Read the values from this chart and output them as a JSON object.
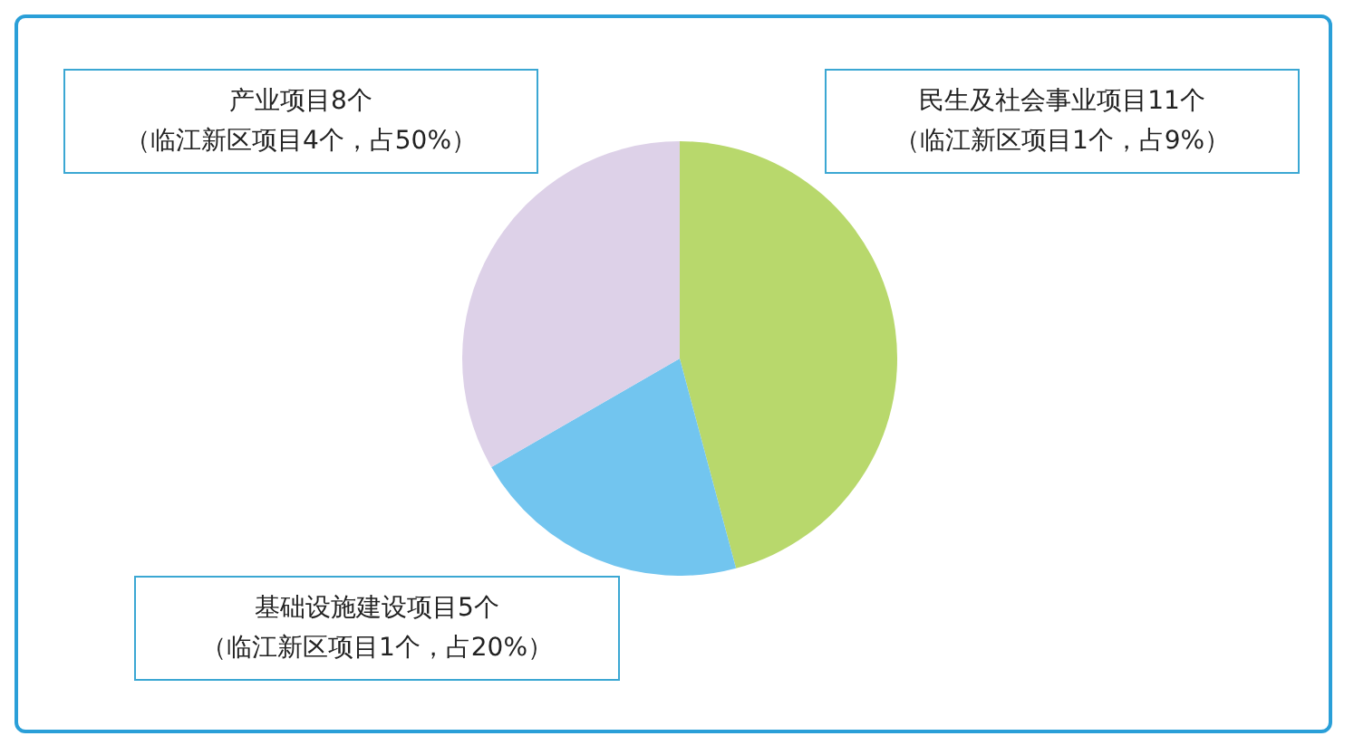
{
  "chart_data": {
    "type": "pie",
    "categories": [
      "民生及社会事业项目11个",
      "基础设施建设项目5个",
      "产业项目8个"
    ],
    "values": [
      11,
      5,
      8
    ],
    "colors": [
      "#b8d86c",
      "#72c5ef",
      "#ddd1e8"
    ],
    "annotations": [
      "（临江新区项目1个，占9%）",
      "（临江新区项目1个，占20%）",
      "（临江新区项目4个，占50%）"
    ],
    "legend": false
  }
}
